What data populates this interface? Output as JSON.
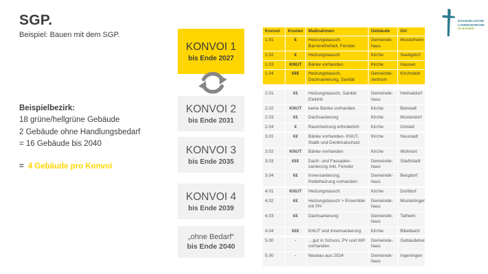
{
  "header": {
    "title": "SGP.",
    "subtitle": "Beispiel: Bauen mit dem SGP."
  },
  "logo": {
    "org_line1": "EVANGELISCHE",
    "org_line2": "LANDESKIRCHE",
    "org_line3": "IN BADEN"
  },
  "left_panel": {
    "heading": "Beispielbezirk:",
    "line1": "18 grüne/hellgrüne Gebäude",
    "line2": "2 Gebäude ohne Handlungsbedarf",
    "line3": "= 16 Gebäude bis 2040",
    "highlight_prefix": "=",
    "highlight_text": "4 Gebäude pro Konvoi"
  },
  "konvois": [
    {
      "title": "KONVOI 1",
      "subtitle": "bis Ende 2027",
      "highlighted": true
    },
    {
      "title": "KONVOI 2",
      "subtitle": "bis Ende 2031",
      "highlighted": false
    },
    {
      "title": "KONVOI 3",
      "subtitle": "bis Ende 2035",
      "highlighted": false
    },
    {
      "title": "KONVOI 4",
      "subtitle": "bis Ende 2039",
      "highlighted": false
    },
    {
      "title": "„ohne Bedarf“",
      "subtitle": "bis Ende 2040",
      "highlighted": false
    }
  ],
  "table": {
    "columns": [
      "Konvoi",
      "Kosten",
      "Maßnahmen",
      "Gebäude",
      "Ort"
    ],
    "sections": [
      {
        "highlighted": true,
        "rows": [
          [
            "1.01",
            "€",
            "Heizungstausch, Barrierefreiheit, Fenster",
            "Gemeinde-haus",
            "Musterheim"
          ],
          [
            "1.02",
            "€",
            "Heizungstausch",
            "Kirche",
            "Seeligdorf"
          ],
          [
            "1.03",
            "KNUT",
            "Bänke vorhanden",
            "Kirche",
            "Hausen"
          ],
          [
            "1.04",
            "€€€",
            "Heizungstausch, Dachsanierung, Sanitär",
            "Gemeinde-zentrum",
            "Kirchstadt"
          ]
        ]
      },
      {
        "highlighted": false,
        "rows": [
          [
            "2.01",
            "€€",
            "Heizungstausch, Sanitär Elektrik",
            "Gemeinde-haus",
            "Heimatdorf"
          ],
          [
            "2.02",
            "KNUT",
            "keine Bänke vorhanden",
            "Kirche",
            "Betstadt"
          ],
          [
            "2.03",
            "€€",
            "Dachsanierung",
            "Kirche",
            "Musterdorf"
          ],
          [
            "2.04",
            "€",
            "Raumheizung erforderlich",
            "Kirche",
            "Ortsteil"
          ]
        ]
      },
      {
        "highlighted": false,
        "rows": [
          [
            "3.01",
            "€€",
            "Bänke vorhanden- KNUT, Statik und Denkmalschutz",
            "Kirche",
            "Neustadt"
          ],
          [
            "3.02",
            "KNUT",
            "Bänke vorhanden",
            "Kirche",
            "Wohnort"
          ],
          [
            "3.03",
            "€€€",
            "Dach- und Fassaden-sanierung inkl. Fenster",
            "Gemeinde-haus",
            "Stadtstadt"
          ],
          [
            "3.04",
            "€€",
            "Innensanierung, Pelletheizung vorhanden",
            "Gemeinde-haus",
            "Bergdorf"
          ]
        ]
      },
      {
        "highlighted": false,
        "rows": [
          [
            "4.01",
            "KNUT",
            "Heizungstausch",
            "Kirche",
            "Dorfdorf"
          ],
          [
            "4.02",
            "€€",
            "Heizungstausch > Ensemble mit PH",
            "Gemeinde-haus",
            "Musterlingen"
          ],
          [
            "4.03",
            "€€",
            "Dachsanierung",
            "Gemeinde-haus",
            "Talheim"
          ],
          [
            "4.04",
            "€€€",
            "KNUT und Innensanierung",
            "Kirche",
            "Bibelbach"
          ]
        ]
      },
      {
        "highlighted": false,
        "rows": [
          [
            "5.00",
            "-",
            "…gut in Schuss, PV und WP vorhanden",
            "Gemeinde-haus",
            "Gebäudeheim"
          ],
          [
            "5.00",
            "-",
            "Neubau aus 2024",
            "Gemeinde-haus",
            "Ingeningen"
          ]
        ]
      }
    ]
  },
  "colors": {
    "accent_yellow": "#FFD500",
    "box_gray": "#F1F1F1",
    "table_row_gray": "#F4F4F4",
    "text_dark": "#3C3C3B",
    "text_gray": "#575756",
    "logo_teal": "#2C7A8C",
    "logo_green": "#94B63F",
    "icon_gray": "#868686"
  }
}
